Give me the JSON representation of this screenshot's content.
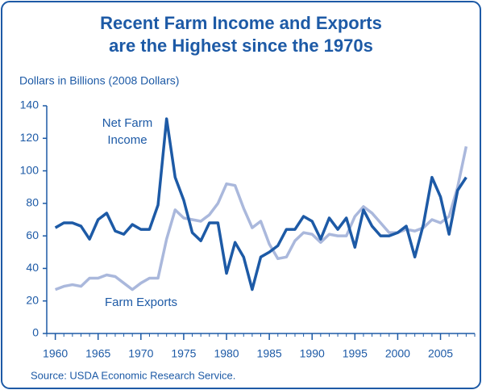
{
  "chart_data": {
    "type": "line",
    "title": [
      "Recent Farm Income and Exports",
      "are the Highest since the 1970s"
    ],
    "y_label": "Dollars in Billions (2008 Dollars)",
    "source": "Source: USDA Economic Research Service.",
    "x": [
      1960,
      1961,
      1962,
      1963,
      1964,
      1965,
      1966,
      1967,
      1968,
      1969,
      1970,
      1971,
      1972,
      1973,
      1974,
      1975,
      1976,
      1977,
      1978,
      1979,
      1980,
      1981,
      1982,
      1983,
      1984,
      1985,
      1986,
      1987,
      1988,
      1989,
      1990,
      1991,
      1992,
      1993,
      1994,
      1995,
      1996,
      1997,
      1998,
      1999,
      2000,
      2001,
      2002,
      2003,
      2004,
      2005,
      2006,
      2007,
      2008
    ],
    "series": [
      {
        "name": [
          "Net Farm",
          "Income"
        ],
        "color": "#1d5aa6",
        "values": [
          65,
          68,
          68,
          66,
          58,
          70,
          74,
          63,
          61,
          67,
          64,
          64,
          79,
          132,
          96,
          82,
          62,
          57,
          68,
          68,
          37,
          56,
          47,
          27,
          47,
          50,
          54,
          64,
          64,
          72,
          69,
          58,
          71,
          64,
          71,
          53,
          76,
          66,
          60,
          60,
          62,
          66,
          47,
          67,
          96,
          84,
          61,
          88,
          96
        ]
      },
      {
        "name": [
          "Farm Exports"
        ],
        "color": "#aab8dc",
        "values": [
          27,
          29,
          30,
          29,
          34,
          34,
          36,
          35,
          31,
          27,
          31,
          34,
          34,
          58,
          76,
          71,
          70,
          69,
          73,
          80,
          92,
          91,
          77,
          65,
          69,
          55,
          46,
          47,
          57,
          62,
          61,
          56,
          61,
          60,
          60,
          72,
          78,
          74,
          68,
          62,
          62,
          64,
          63,
          65,
          70,
          68,
          72,
          90,
          115
        ]
      }
    ],
    "xlim": [
      1959,
      2009
    ],
    "xticks": [
      1960,
      1965,
      1970,
      1975,
      1980,
      1985,
      1990,
      1995,
      2000,
      2005
    ],
    "ylim": [
      0,
      140
    ],
    "yticks": [
      0,
      20,
      40,
      60,
      80,
      100,
      120,
      140
    ],
    "grid": false
  }
}
